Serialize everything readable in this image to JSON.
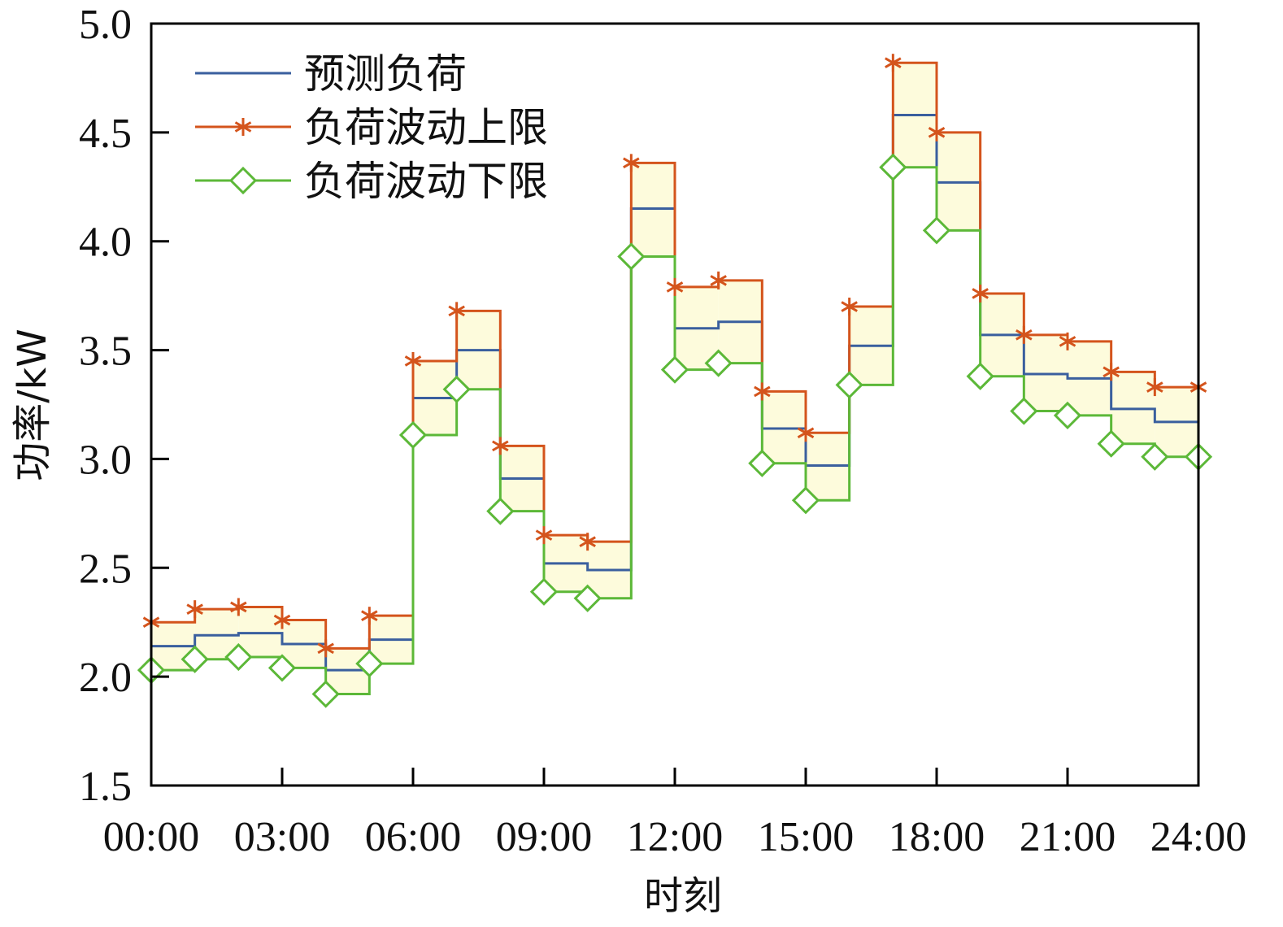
{
  "chart_data": {
    "type": "line",
    "step": "post",
    "title": "",
    "xlabel": "时刻",
    "ylabel": "功率/kW",
    "ylim": [
      1.5,
      5.0
    ],
    "xlim": [
      0,
      24
    ],
    "x_ticks": [
      "00:00",
      "03:00",
      "06:00",
      "09:00",
      "12:00",
      "15:00",
      "18:00",
      "21:00",
      "24:00"
    ],
    "y_ticks": [
      "1.5",
      "2.0",
      "2.5",
      "3.0",
      "3.5",
      "4.0",
      "4.5",
      "5.0"
    ],
    "x": [
      0,
      1,
      2,
      3,
      4,
      5,
      6,
      7,
      8,
      9,
      10,
      11,
      12,
      13,
      14,
      15,
      16,
      17,
      18,
      19,
      20,
      21,
      22,
      23,
      24
    ],
    "series": [
      {
        "name": "预测负荷",
        "color": "#3a5f9e",
        "marker": "none",
        "values": [
          2.14,
          2.19,
          2.2,
          2.15,
          2.03,
          2.17,
          3.28,
          3.5,
          2.91,
          2.52,
          2.49,
          4.15,
          3.6,
          3.63,
          3.14,
          2.97,
          3.52,
          4.58,
          4.27,
          3.57,
          3.39,
          3.37,
          3.23,
          3.17,
          3.17
        ]
      },
      {
        "name": "负荷波动上限",
        "color": "#d4541c",
        "marker": "asterisk",
        "values": [
          2.25,
          2.31,
          2.32,
          2.26,
          2.13,
          2.28,
          3.45,
          3.68,
          3.06,
          2.65,
          2.62,
          4.36,
          3.79,
          3.82,
          3.31,
          3.12,
          3.7,
          4.82,
          4.5,
          3.76,
          3.57,
          3.54,
          3.4,
          3.33,
          3.33
        ]
      },
      {
        "name": "负荷波动下限",
        "color": "#5cb838",
        "marker": "diamond",
        "values": [
          2.03,
          2.08,
          2.09,
          2.04,
          1.92,
          2.06,
          3.11,
          3.32,
          2.76,
          2.39,
          2.36,
          3.93,
          3.41,
          3.44,
          2.98,
          2.81,
          3.34,
          4.34,
          4.05,
          3.38,
          3.22,
          3.2,
          3.07,
          3.01,
          3.01
        ]
      }
    ],
    "band_fill": "#fdfbdc",
    "legend_position": "top-left",
    "grid": false
  }
}
